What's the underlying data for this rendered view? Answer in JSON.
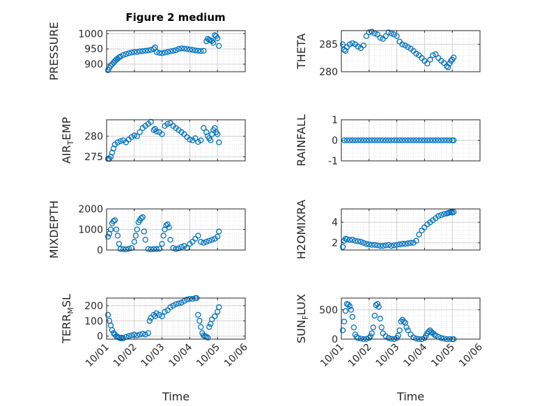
{
  "title": "Figure 2 medium",
  "x_axis": {
    "label": "Time",
    "ticks": [
      "10/01",
      "10/02",
      "10/03",
      "10/04",
      "10/05",
      "10/06"
    ],
    "xlim": [
      0,
      5
    ]
  },
  "chart_data": [
    {
      "type": "scatter",
      "ylabel": "PRESSURE",
      "ylabel_parts": [
        "PRESSURE"
      ],
      "ylim": [
        875,
        1010
      ],
      "yticks": [
        900,
        950,
        1000
      ],
      "t": [
        0.05,
        0.1,
        0.15,
        0.2,
        0.25,
        0.3,
        0.35,
        0.4,
        0.45,
        0.5,
        0.6,
        0.7,
        0.8,
        0.9,
        1.0,
        1.1,
        1.2,
        1.3,
        1.4,
        1.5,
        1.6,
        1.7,
        1.75,
        1.8,
        1.9,
        2.0,
        2.1,
        2.2,
        2.3,
        2.4,
        2.5,
        2.6,
        2.7,
        2.8,
        2.9,
        3.0,
        3.1,
        3.2,
        3.3,
        3.4,
        3.5,
        3.6,
        3.65,
        3.7,
        3.75,
        3.8,
        3.85,
        3.9,
        3.95,
        4.0,
        4.05
      ],
      "y": [
        880,
        888,
        895,
        900,
        905,
        910,
        915,
        918,
        922,
        925,
        930,
        933,
        936,
        938,
        940,
        940,
        942,
        943,
        944,
        945,
        947,
        950,
        955,
        940,
        937,
        936,
        938,
        940,
        942,
        944,
        946,
        950,
        952,
        951,
        950,
        948,
        947,
        945,
        944,
        943,
        944,
        975,
        983,
        980,
        978,
        976,
        970,
        995,
        992,
        985,
        960
      ]
    },
    {
      "type": "scatter",
      "ylabel": "THETA",
      "ylabel_parts": [
        "THETA"
      ],
      "ylim": [
        280,
        287.5
      ],
      "yticks": [
        280,
        285
      ],
      "t": [
        0.05,
        0.1,
        0.15,
        0.2,
        0.3,
        0.4,
        0.5,
        0.6,
        0.7,
        0.8,
        0.9,
        1.0,
        1.1,
        1.2,
        1.3,
        1.4,
        1.5,
        1.6,
        1.7,
        1.8,
        1.9,
        2.0,
        2.1,
        2.2,
        2.3,
        2.4,
        2.5,
        2.6,
        2.7,
        2.8,
        2.9,
        3.0,
        3.1,
        3.2,
        3.3,
        3.4,
        3.5,
        3.6,
        3.7,
        3.8,
        3.85,
        3.9,
        3.95,
        4.0,
        4.05
      ],
      "y": [
        285,
        284,
        283.8,
        284.5,
        285,
        285.2,
        285,
        284.6,
        284.3,
        284.8,
        286.5,
        287.2,
        287.3,
        287,
        286.8,
        286.2,
        286,
        286.5,
        287.2,
        287,
        286.8,
        286.5,
        285.5,
        285,
        284.8,
        284.5,
        284.2,
        283.8,
        283.3,
        283,
        282.5,
        282,
        281.5,
        282.2,
        283,
        283.2,
        282.5,
        282,
        281.6,
        281,
        280.8,
        281.5,
        282,
        282.2,
        282.6
      ]
    },
    {
      "type": "scatter",
      "ylabel": "AIR_TEMP",
      "ylabel_parts": [
        "AIR",
        "T",
        "EMP"
      ],
      "ylim": [
        274,
        284
      ],
      "yticks": [
        275,
        280
      ],
      "t": [
        0.05,
        0.1,
        0.15,
        0.2,
        0.25,
        0.3,
        0.4,
        0.5,
        0.6,
        0.7,
        0.8,
        0.9,
        1.0,
        1.1,
        1.2,
        1.3,
        1.4,
        1.5,
        1.6,
        1.7,
        1.75,
        1.8,
        1.9,
        2.0,
        2.1,
        2.2,
        2.3,
        2.4,
        2.5,
        2.6,
        2.7,
        2.8,
        2.9,
        3.0,
        3.1,
        3.2,
        3.3,
        3.4,
        3.5,
        3.6,
        3.65,
        3.7,
        3.75,
        3.8,
        3.85,
        3.9,
        3.95,
        4.0,
        4.05
      ],
      "y": [
        274.5,
        274.5,
        275,
        276,
        277,
        278,
        278.5,
        278.8,
        279,
        278.5,
        279.2,
        279.8,
        280.2,
        280,
        281,
        282,
        282.5,
        283,
        283.5,
        281.5,
        281.8,
        281.2,
        281,
        280.5,
        282.5,
        283,
        283.2,
        282.5,
        282,
        281.5,
        281,
        280.5,
        279.8,
        279.2,
        279,
        279.5,
        278.6,
        279,
        282,
        281,
        280,
        279.5,
        279,
        280.5,
        281.5,
        282,
        281,
        280.5,
        278.5
      ]
    },
    {
      "type": "scatter",
      "ylabel": "RAINFALL",
      "ylabel_parts": [
        "RAINFALL"
      ],
      "ylim": [
        -1,
        1
      ],
      "yticks": [
        -1,
        0,
        1
      ],
      "t": [
        0.1,
        0.2,
        0.3,
        0.4,
        0.5,
        0.6,
        0.7,
        0.8,
        0.9,
        1.0,
        1.1,
        1.2,
        1.3,
        1.4,
        1.5,
        1.6,
        1.7,
        1.8,
        1.9,
        2.0,
        2.1,
        2.2,
        2.3,
        2.4,
        2.5,
        2.6,
        2.7,
        2.8,
        2.9,
        3.0,
        3.1,
        3.2,
        3.3,
        3.4,
        3.5,
        3.6,
        3.7,
        3.8,
        3.9,
        4.0,
        4.05
      ],
      "y": [
        0,
        0,
        0,
        0,
        0,
        0,
        0,
        0,
        0,
        0,
        0,
        0,
        0,
        0,
        0,
        0,
        0,
        0,
        0,
        0,
        0,
        0,
        0,
        0,
        0,
        0,
        0,
        0,
        0,
        0,
        0,
        0,
        0,
        0,
        0,
        0,
        0,
        0,
        0,
        0,
        0
      ]
    },
    {
      "type": "scatter",
      "ylabel": "MIXDEPTH",
      "ylabel_parts": [
        "MIXDEPTH"
      ],
      "ylim": [
        0,
        2000
      ],
      "yticks": [
        0,
        1000,
        2000
      ],
      "t": [
        0.05,
        0.1,
        0.15,
        0.2,
        0.25,
        0.3,
        0.35,
        0.4,
        0.45,
        0.5,
        0.6,
        0.7,
        0.8,
        0.9,
        1.0,
        1.05,
        1.1,
        1.15,
        1.2,
        1.25,
        1.3,
        1.35,
        1.4,
        1.5,
        1.6,
        1.7,
        1.8,
        1.9,
        2.0,
        2.05,
        2.1,
        2.15,
        2.2,
        2.25,
        2.3,
        2.4,
        2.5,
        2.6,
        2.7,
        2.8,
        2.9,
        3.0,
        3.1,
        3.2,
        3.3,
        3.4,
        3.5,
        3.6,
        3.7,
        3.8,
        3.9,
        4.0,
        4.05
      ],
      "y": [
        650,
        800,
        1000,
        1300,
        1400,
        1450,
        1000,
        700,
        300,
        50,
        40,
        30,
        60,
        100,
        400,
        700,
        1000,
        1350,
        1450,
        1550,
        1600,
        900,
        500,
        50,
        30,
        40,
        50,
        60,
        300,
        700,
        1000,
        1200,
        1250,
        1100,
        500,
        100,
        50,
        80,
        150,
        200,
        100,
        300,
        400,
        550,
        700,
        400,
        350,
        400,
        450,
        500,
        550,
        650,
        900
      ]
    },
    {
      "type": "scatter",
      "ylabel": "H2OMIXRA",
      "ylabel_parts": [
        "H2OMIXRA"
      ],
      "ylim": [
        1.3,
        5.3
      ],
      "yticks": [
        2,
        4
      ],
      "t": [
        0.05,
        0.1,
        0.15,
        0.2,
        0.3,
        0.4,
        0.5,
        0.6,
        0.7,
        0.8,
        0.9,
        1.0,
        1.1,
        1.2,
        1.3,
        1.4,
        1.5,
        1.6,
        1.7,
        1.8,
        1.9,
        2.0,
        2.1,
        2.2,
        2.3,
        2.4,
        2.5,
        2.6,
        2.7,
        2.8,
        2.9,
        3.0,
        3.1,
        3.2,
        3.3,
        3.4,
        3.5,
        3.6,
        3.7,
        3.8,
        3.85,
        3.9,
        3.95,
        4.0,
        4.05
      ],
      "y": [
        1.6,
        2.2,
        2.4,
        2.35,
        2.3,
        2.3,
        2.2,
        2.15,
        2.1,
        2,
        1.9,
        1.85,
        1.8,
        1.8,
        1.75,
        1.7,
        1.7,
        1.75,
        1.8,
        1.7,
        1.75,
        1.8,
        1.85,
        1.9,
        1.9,
        1.95,
        2,
        2,
        2.2,
        2.8,
        3.2,
        3.5,
        3.8,
        4,
        4.2,
        4.4,
        4.6,
        4.7,
        4.8,
        4.85,
        4.9,
        4.95,
        5,
        4.95,
        5
      ]
    },
    {
      "type": "scatter",
      "ylabel": "TERR_MSL",
      "ylabel_parts": [
        "TERR",
        "M",
        "SL"
      ],
      "ylim": [
        -20,
        250
      ],
      "yticks": [
        0,
        100,
        200
      ],
      "t": [
        0.05,
        0.1,
        0.15,
        0.2,
        0.25,
        0.3,
        0.35,
        0.4,
        0.45,
        0.5,
        0.55,
        0.6,
        0.7,
        0.8,
        0.9,
        1.0,
        1.1,
        1.2,
        1.3,
        1.4,
        1.5,
        1.55,
        1.6,
        1.7,
        1.75,
        1.8,
        1.9,
        2.0,
        2.1,
        2.2,
        2.3,
        2.4,
        2.5,
        2.6,
        2.7,
        2.8,
        2.9,
        3.0,
        3.1,
        3.2,
        3.25,
        3.3,
        3.35,
        3.4,
        3.45,
        3.5,
        3.55,
        3.6,
        3.65,
        3.7,
        3.75,
        3.8,
        3.9,
        4.0,
        4.05
      ],
      "y": [
        140,
        100,
        70,
        40,
        20,
        10,
        0,
        -5,
        -10,
        -15,
        -10,
        -15,
        -5,
        0,
        5,
        10,
        5,
        10,
        15,
        10,
        20,
        100,
        120,
        140,
        130,
        150,
        140,
        130,
        160,
        170,
        190,
        200,
        210,
        215,
        220,
        230,
        240,
        245,
        245,
        250,
        250,
        140,
        100,
        60,
        20,
        5,
        0,
        -5,
        -10,
        60,
        80,
        110,
        130,
        160,
        190
      ]
    },
    {
      "type": "scatter",
      "ylabel": "SUN_FLUX",
      "ylabel_parts": [
        "SUN",
        "F",
        "LUX"
      ],
      "ylim": [
        0,
        700
      ],
      "yticks": [
        0,
        500
      ],
      "t": [
        0.05,
        0.1,
        0.15,
        0.2,
        0.25,
        0.3,
        0.35,
        0.4,
        0.45,
        0.5,
        0.55,
        0.6,
        0.7,
        0.8,
        0.9,
        1.0,
        1.05,
        1.1,
        1.15,
        1.2,
        1.25,
        1.3,
        1.35,
        1.4,
        1.45,
        1.5,
        1.6,
        1.7,
        1.8,
        1.9,
        2.0,
        2.05,
        2.1,
        2.15,
        2.2,
        2.25,
        2.3,
        2.35,
        2.4,
        2.5,
        2.6,
        2.7,
        2.8,
        2.9,
        3.0,
        3.05,
        3.1,
        3.15,
        3.2,
        3.25,
        3.3,
        3.35,
        3.4,
        3.5,
        3.6,
        3.7,
        3.8,
        3.9,
        4.0,
        4.05
      ],
      "y": [
        150,
        300,
        480,
        600,
        590,
        560,
        500,
        380,
        200,
        80,
        40,
        20,
        10,
        0,
        5,
        20,
        50,
        100,
        200,
        400,
        580,
        600,
        550,
        350,
        200,
        100,
        50,
        20,
        5,
        0,
        20,
        60,
        150,
        300,
        330,
        300,
        280,
        200,
        150,
        80,
        30,
        10,
        0,
        0,
        20,
        60,
        100,
        130,
        150,
        120,
        100,
        80,
        60,
        40,
        20,
        10,
        0,
        0,
        0,
        0
      ]
    }
  ]
}
